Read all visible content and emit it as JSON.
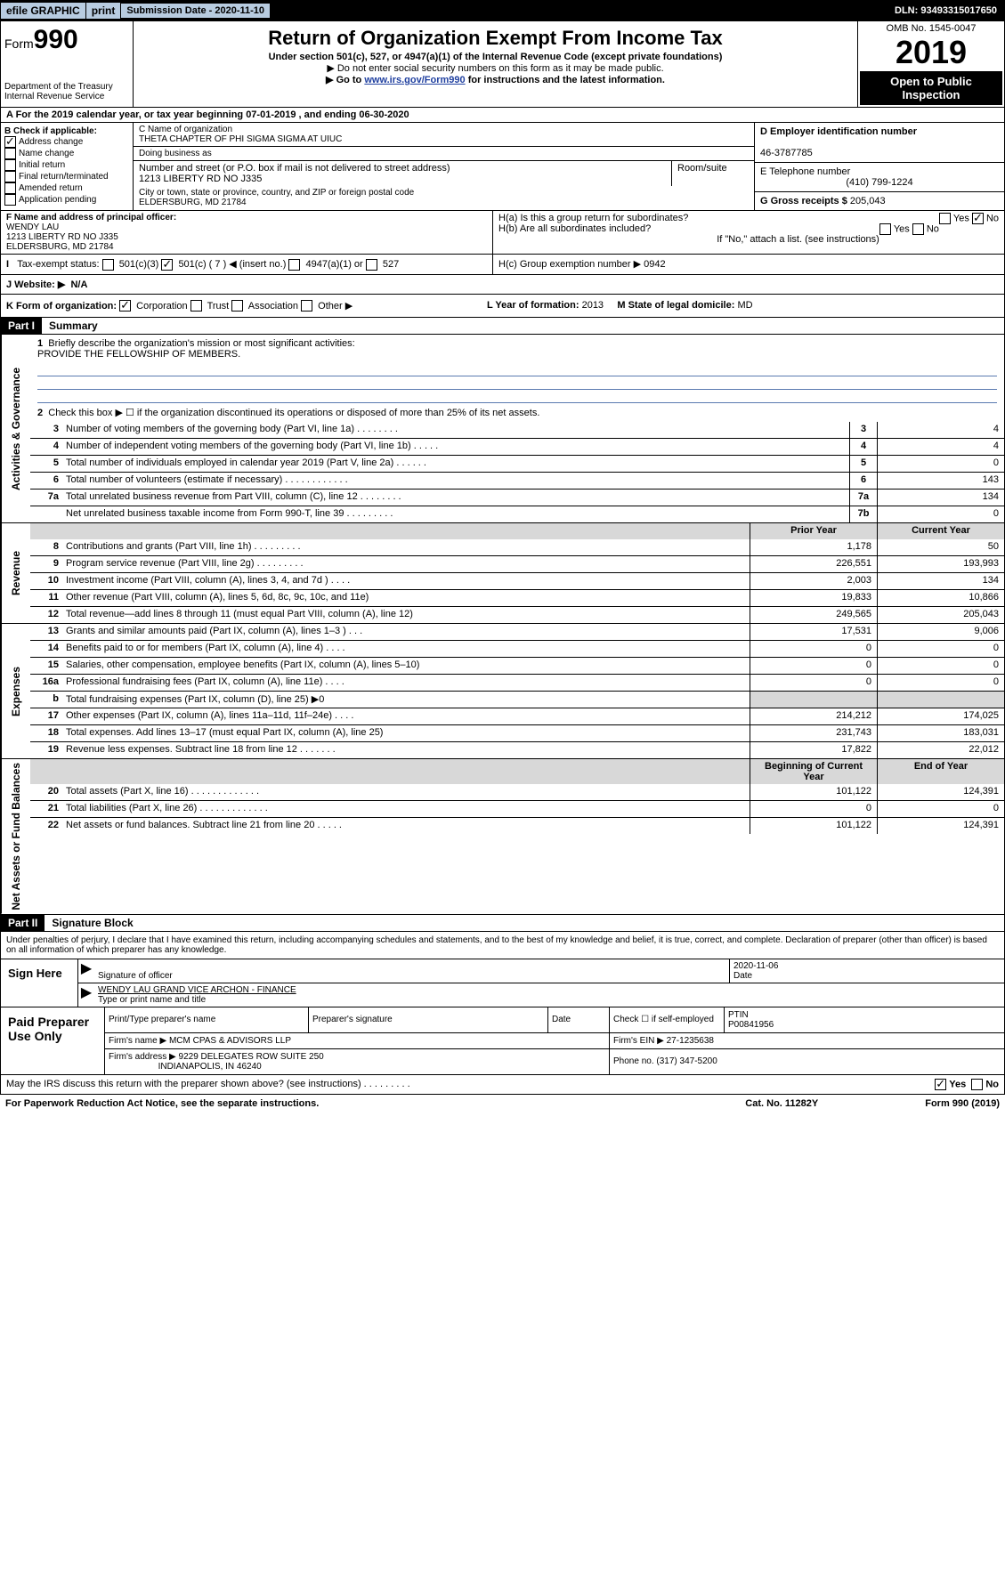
{
  "top": {
    "efile": "efile GRAPHIC",
    "print": "print",
    "subdate_label": "Submission Date - 2020-11-10",
    "dln": "DLN: 93493315017650"
  },
  "header": {
    "form": "Form",
    "num": "990",
    "dept": "Department of the Treasury\nInternal Revenue Service",
    "title": "Return of Organization Exempt From Income Tax",
    "subtitle": "Under section 501(c), 527, or 4947(a)(1) of the Internal Revenue Code (except private foundations)",
    "instr1": "▶ Do not enter social security numbers on this form as it may be made public.",
    "instr2": "▶ Go to www.irs.gov/Form990 for instructions and the latest information.",
    "omb": "OMB No. 1545-0047",
    "year": "2019",
    "open": "Open to Public Inspection"
  },
  "period": "A For the 2019 calendar year, or tax year beginning 07-01-2019    , and ending 06-30-2020",
  "colB": {
    "heading": "B Check if applicable:",
    "items": [
      "Address change",
      "Name change",
      "Initial return",
      "Final return/terminated",
      "Amended return",
      "Application pending"
    ],
    "checked_idx": 0
  },
  "colC": {
    "name_label": "C Name of organization",
    "name": "THETA CHAPTER OF PHI SIGMA SIGMA AT UIUC",
    "dba_label": "Doing business as",
    "addr_label": "Number and street (or P.O. box if mail is not delivered to street address)",
    "room_label": "Room/suite",
    "addr": "1213 LIBERTY RD NO J335",
    "city_label": "City or town, state or province, country, and ZIP or foreign postal code",
    "city": "ELDERSBURG, MD  21784"
  },
  "colD": {
    "ein_label": "D Employer identification number",
    "ein": "46-3787785",
    "tel_label": "E Telephone number",
    "tel": "(410) 799-1224",
    "gross_label": "G Gross receipts $",
    "gross": "205,043"
  },
  "f": {
    "label": "F  Name and address of principal officer:",
    "name": "WENDY LAU",
    "addr1": "1213 LIBERTY RD NO J335",
    "addr2": "ELDERSBURG, MD  21784"
  },
  "h": {
    "a": "H(a)  Is this a group return for subordinates?",
    "b": "H(b)  Are all subordinates included?",
    "b2": "If \"No,\" attach a list. (see instructions)",
    "c": "H(c)  Group exemption number ▶   0942",
    "yes": "Yes",
    "no": "No"
  },
  "i": {
    "label": "Tax-exempt status:",
    "opts": [
      "501(c)(3)",
      "501(c) ( 7 ) ◀ (insert no.)",
      "4947(a)(1) or",
      "527"
    ],
    "checked_idx": 1
  },
  "j": {
    "label": "J  Website: ▶",
    "val": "N/A"
  },
  "k": {
    "label": "K Form of organization:",
    "opts": [
      "Corporation",
      "Trust",
      "Association",
      "Other ▶"
    ],
    "checked_idx": 0
  },
  "l": {
    "label": "L Year of formation:",
    "val": "2013"
  },
  "m": {
    "label": "M State of legal domicile:",
    "val": "MD"
  },
  "part1": {
    "label": "Part I",
    "title": "Summary"
  },
  "mission": {
    "num": "1",
    "text": "Briefly describe the organization's mission or most significant activities:",
    "val": "PROVIDE THE FELLOWSHIP OF MEMBERS."
  },
  "line2": {
    "num": "2",
    "text": "Check this box ▶ ☐  if the organization discontinued its operations or disposed of more than 25% of its net assets."
  },
  "gov_rows": [
    {
      "num": "3",
      "desc": "Number of voting members of the governing body (Part VI, line 1a)   .    .    .    .    .    .    .    .",
      "box": "3",
      "val": "4"
    },
    {
      "num": "4",
      "desc": "Number of independent voting members of the governing body (Part VI, line 1b)   .    .    .    .    .",
      "box": "4",
      "val": "4"
    },
    {
      "num": "5",
      "desc": "Total number of individuals employed in calendar year 2019 (Part V, line 2a)   .    .    .    .    .    .",
      "box": "5",
      "val": "0"
    },
    {
      "num": "6",
      "desc": "Total number of volunteers (estimate if necessary)   .    .    .    .    .    .    .    .    .    .    .    .",
      "box": "6",
      "val": "143"
    },
    {
      "num": "7a",
      "desc": "Total unrelated business revenue from Part VIII, column (C), line 12   .    .    .    .    .    .    .    .",
      "box": "7a",
      "val": "134"
    },
    {
      "num": "",
      "desc": "Net unrelated business taxable income from Form 990-T, line 39    .    .    .    .    .    .    .    .    .",
      "box": "7b",
      "val": "0"
    }
  ],
  "year_cols": {
    "prior": "Prior Year",
    "current": "Current Year"
  },
  "revenue_rows": [
    {
      "num": "8",
      "desc": "Contributions and grants (Part VIII, line 1h)   .    .    .    .    .    .    .    .    .",
      "p": "1,178",
      "c": "50"
    },
    {
      "num": "9",
      "desc": "Program service revenue (Part VIII, line 2g)   .    .    .    .    .    .    .    .    .",
      "p": "226,551",
      "c": "193,993"
    },
    {
      "num": "10",
      "desc": "Investment income (Part VIII, column (A), lines 3, 4, and 7d )   .    .    .    .",
      "p": "2,003",
      "c": "134"
    },
    {
      "num": "11",
      "desc": "Other revenue (Part VIII, column (A), lines 5, 6d, 8c, 9c, 10c, and 11e)",
      "p": "19,833",
      "c": "10,866"
    },
    {
      "num": "12",
      "desc": "Total revenue—add lines 8 through 11 (must equal Part VIII, column (A), line 12)",
      "p": "249,565",
      "c": "205,043"
    }
  ],
  "expense_rows": [
    {
      "num": "13",
      "desc": "Grants and similar amounts paid (Part IX, column (A), lines 1–3 )   .    .    .",
      "p": "17,531",
      "c": "9,006"
    },
    {
      "num": "14",
      "desc": "Benefits paid to or for members (Part IX, column (A), line 4)   .    .    .    .",
      "p": "0",
      "c": "0"
    },
    {
      "num": "15",
      "desc": "Salaries, other compensation, employee benefits (Part IX, column (A), lines 5–10)",
      "p": "0",
      "c": "0"
    },
    {
      "num": "16a",
      "desc": "Professional fundraising fees (Part IX, column (A), line 11e)   .    .    .    .",
      "p": "0",
      "c": "0"
    },
    {
      "num": "b",
      "desc": "Total fundraising expenses (Part IX, column (D), line 25) ▶0",
      "p": "",
      "c": "",
      "shaded": true
    },
    {
      "num": "17",
      "desc": "Other expenses (Part IX, column (A), lines 11a–11d, 11f–24e)   .    .    .    .",
      "p": "214,212",
      "c": "174,025"
    },
    {
      "num": "18",
      "desc": "Total expenses. Add lines 13–17 (must equal Part IX, column (A), line 25)",
      "p": "231,743",
      "c": "183,031"
    },
    {
      "num": "19",
      "desc": "Revenue less expenses. Subtract line 18 from line 12   .    .    .    .    .    .    .",
      "p": "17,822",
      "c": "22,012"
    }
  ],
  "bal_cols": {
    "begin": "Beginning of Current Year",
    "end": "End of Year"
  },
  "bal_rows": [
    {
      "num": "20",
      "desc": "Total assets (Part X, line 16)   .    .    .    .    .    .    .    .    .    .    .    .    .",
      "p": "101,122",
      "c": "124,391"
    },
    {
      "num": "21",
      "desc": "Total liabilities (Part X, line 26)   .    .    .    .    .    .    .    .    .    .    .    .    .",
      "p": "0",
      "c": "0"
    },
    {
      "num": "22",
      "desc": "Net assets or fund balances. Subtract line 21 from line 20   .    .    .    .    .",
      "p": "101,122",
      "c": "124,391"
    }
  ],
  "part2": {
    "label": "Part II",
    "title": "Signature Block"
  },
  "perjury": "Under penalties of perjury, I declare that I have examined this return, including accompanying schedules and statements, and to the best of my knowledge and belief, it is true, correct, and complete. Declaration of preparer (other than officer) is based on all information of which preparer has any knowledge.",
  "sign": {
    "here": "Sign Here",
    "sig": "Signature of officer",
    "date": "2020-11-06",
    "date_label": "Date",
    "name": "WENDY LAU GRAND VICE ARCHON - FINANCE",
    "name_label": "Type or print name and title"
  },
  "paid": {
    "label": "Paid Preparer Use Only",
    "h1": "Print/Type preparer's name",
    "h2": "Preparer's signature",
    "h3": "Date",
    "h4": "Check ☐ if self-employed",
    "h5": "PTIN",
    "ptin": "P00841956",
    "firm_label": "Firm's name    ▶",
    "firm": "MCM CPAS & ADVISORS LLP",
    "ein_label": "Firm's EIN ▶",
    "ein": "27-1235638",
    "addr_label": "Firm's address ▶",
    "addr": "9229 DELEGATES ROW SUITE 250",
    "addr2": "INDIANAPOLIS, IN  46240",
    "phone_label": "Phone no.",
    "phone": "(317) 347-5200"
  },
  "discuss": "May the IRS discuss this return with the preparer shown above? (see instructions)    .    .    .    .    .    .    .    .    .",
  "footer": {
    "left": "For Paperwork Reduction Act Notice, see the separate instructions.",
    "mid": "Cat. No. 11282Y",
    "right": "Form 990 (2019)"
  },
  "side_labels": {
    "gov": "Activities & Governance",
    "rev": "Revenue",
    "exp": "Expenses",
    "bal": "Net Assets or Fund Balances"
  }
}
